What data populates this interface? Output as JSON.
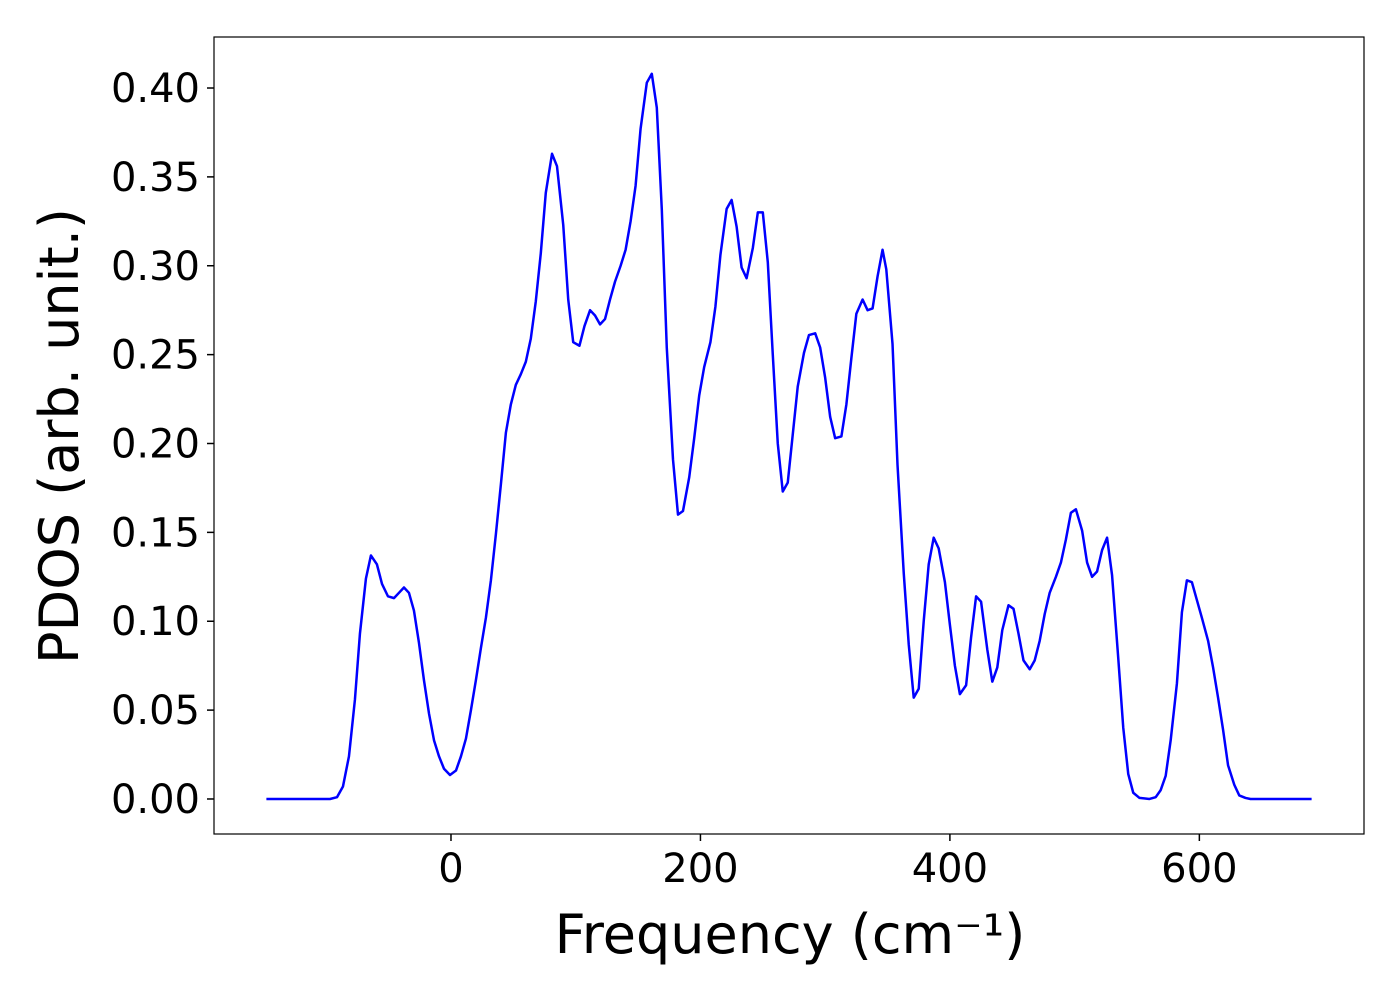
{
  "chart_data": {
    "type": "line",
    "xlabel": "Frequency (cm⁻¹)",
    "ylabel": "PDOS (arb. unit.)",
    "x": [
      -148,
      -97,
      -91.4,
      -86.6,
      -81.8,
      -77,
      -73,
      -68.2,
      -64.2,
      -59.4,
      -55.3,
      -50.5,
      -45.7,
      -41.7,
      -37.7,
      -33.7,
      -29.7,
      -25.7,
      -21.7,
      -17.6,
      -13.6,
      -9.6,
      -5.6,
      -0.8,
      4,
      8,
      12,
      16,
      20,
      24,
      28,
      32,
      36,
      40,
      44,
      48,
      52,
      56,
      60,
      64,
      68,
      72,
      76,
      81,
      85,
      90,
      94,
      98,
      103,
      107,
      111.5,
      115.5,
      119.5,
      123.5,
      127.5,
      131.5,
      136,
      140,
      144,
      148,
      152,
      157,
      161,
      165,
      169,
      173,
      178,
      182,
      186,
      191,
      195,
      199,
      203,
      208,
      212,
      216,
      221,
      225,
      229,
      233,
      237,
      242,
      246,
      250,
      254,
      258,
      262,
      266,
      270,
      274,
      278,
      283,
      287,
      292,
      296,
      300,
      304,
      308,
      313,
      317,
      321,
      325,
      330,
      334,
      338,
      342,
      346,
      349,
      354,
      358,
      363,
      367,
      371,
      375,
      379,
      383,
      387,
      391,
      396,
      400,
      404,
      408,
      413,
      417,
      421,
      425,
      430,
      434,
      438,
      442,
      447,
      451,
      455,
      459,
      464,
      468,
      472,
      476,
      480,
      485,
      489,
      493,
      497,
      501,
      506,
      510,
      514,
      518,
      522,
      526,
      530,
      535,
      539,
      543,
      547,
      552,
      560,
      565,
      569,
      573,
      577,
      582,
      586,
      590,
      594,
      598,
      602,
      607,
      611,
      615,
      619,
      623,
      628,
      632,
      637,
      641,
      690
    ],
    "series": [
      {
        "name": "PDOS",
        "color": "#0000ff",
        "values": [
          0,
          0,
          0.001,
          0.007,
          0.024,
          0.056,
          0.093,
          0.124,
          0.137,
          0.132,
          0.121,
          0.114,
          0.113,
          0.116,
          0.119,
          0.116,
          0.106,
          0.088,
          0.067,
          0.048,
          0.033,
          0.024,
          0.017,
          0.0135,
          0.016,
          0.024,
          0.034,
          0.05,
          0.067,
          0.085,
          0.102,
          0.123,
          0.149,
          0.177,
          0.206,
          0.222,
          0.233,
          0.239,
          0.246,
          0.259,
          0.28,
          0.307,
          0.341,
          0.363,
          0.356,
          0.323,
          0.281,
          0.257,
          0.255,
          0.266,
          0.275,
          0.272,
          0.267,
          0.27,
          0.281,
          0.291,
          0.3,
          0.309,
          0.325,
          0.345,
          0.377,
          0.403,
          0.408,
          0.389,
          0.332,
          0.254,
          0.191,
          0.16,
          0.162,
          0.181,
          0.203,
          0.227,
          0.243,
          0.257,
          0.277,
          0.306,
          0.332,
          0.337,
          0.322,
          0.299,
          0.293,
          0.31,
          0.33,
          0.33,
          0.302,
          0.25,
          0.2,
          0.173,
          0.178,
          0.205,
          0.232,
          0.251,
          0.261,
          0.262,
          0.254,
          0.237,
          0.215,
          0.203,
          0.204,
          0.222,
          0.248,
          0.273,
          0.281,
          0.275,
          0.276,
          0.294,
          0.309,
          0.298,
          0.256,
          0.188,
          0.127,
          0.087,
          0.057,
          0.062,
          0.1,
          0.132,
          0.147,
          0.141,
          0.122,
          0.098,
          0.075,
          0.059,
          0.064,
          0.091,
          0.114,
          0.111,
          0.084,
          0.066,
          0.074,
          0.095,
          0.109,
          0.107,
          0.093,
          0.078,
          0.073,
          0.078,
          0.089,
          0.104,
          0.116,
          0.125,
          0.133,
          0.146,
          0.161,
          0.163,
          0.151,
          0.133,
          0.125,
          0.128,
          0.14,
          0.147,
          0.126,
          0.079,
          0.04,
          0.014,
          0.0035,
          0.0006,
          0,
          0.001,
          0.005,
          0.013,
          0.033,
          0.065,
          0.105,
          0.123,
          0.122,
          0.112,
          0.102,
          0.089,
          0.074,
          0.057,
          0.039,
          0.019,
          0.008,
          0.002,
          0.0006,
          0,
          0
        ]
      }
    ],
    "xlim": [
      -190,
      732
    ],
    "ylim": [
      -0.0197,
      0.4287
    ],
    "xticks": [
      0,
      200,
      400,
      600
    ],
    "yticks": [
      {
        "value": 0,
        "label": "0.00"
      },
      {
        "value": 0.05,
        "label": "0.05"
      },
      {
        "value": 0.1,
        "label": "0.10"
      },
      {
        "value": 0.15,
        "label": "0.15"
      },
      {
        "value": 0.2,
        "label": "0.20"
      },
      {
        "value": 0.25,
        "label": "0.25"
      },
      {
        "value": 0.3,
        "label": "0.30"
      },
      {
        "value": 0.35,
        "label": "0.35"
      },
      {
        "value": 0.4,
        "label": "0.40"
      }
    ],
    "grid": false
  }
}
